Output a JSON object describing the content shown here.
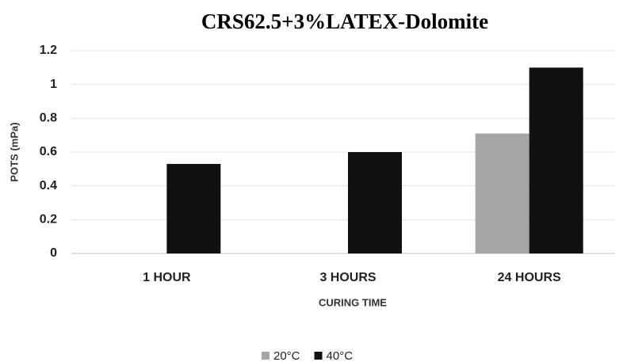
{
  "chart_data": {
    "type": "bar",
    "title": "CRS62.5+3%LATEX-Dolomite",
    "x_label": "CURING TIME",
    "y_label": "POTS (mPa)",
    "categories": [
      "1 HOUR",
      "3 HOURS",
      "24 HOURS"
    ],
    "series": [
      {
        "name": "20°C",
        "color": "#a5a5a5",
        "values": [
          null,
          null,
          0.71
        ]
      },
      {
        "name": "40°C",
        "color": "#111111",
        "values": [
          0.53,
          0.6,
          1.1
        ]
      }
    ],
    "ylim": [
      0,
      1.2
    ],
    "yticks": [
      0,
      0.2,
      0.4,
      0.6,
      0.8,
      1,
      1.2
    ],
    "grid": true,
    "legend": "bottom"
  }
}
